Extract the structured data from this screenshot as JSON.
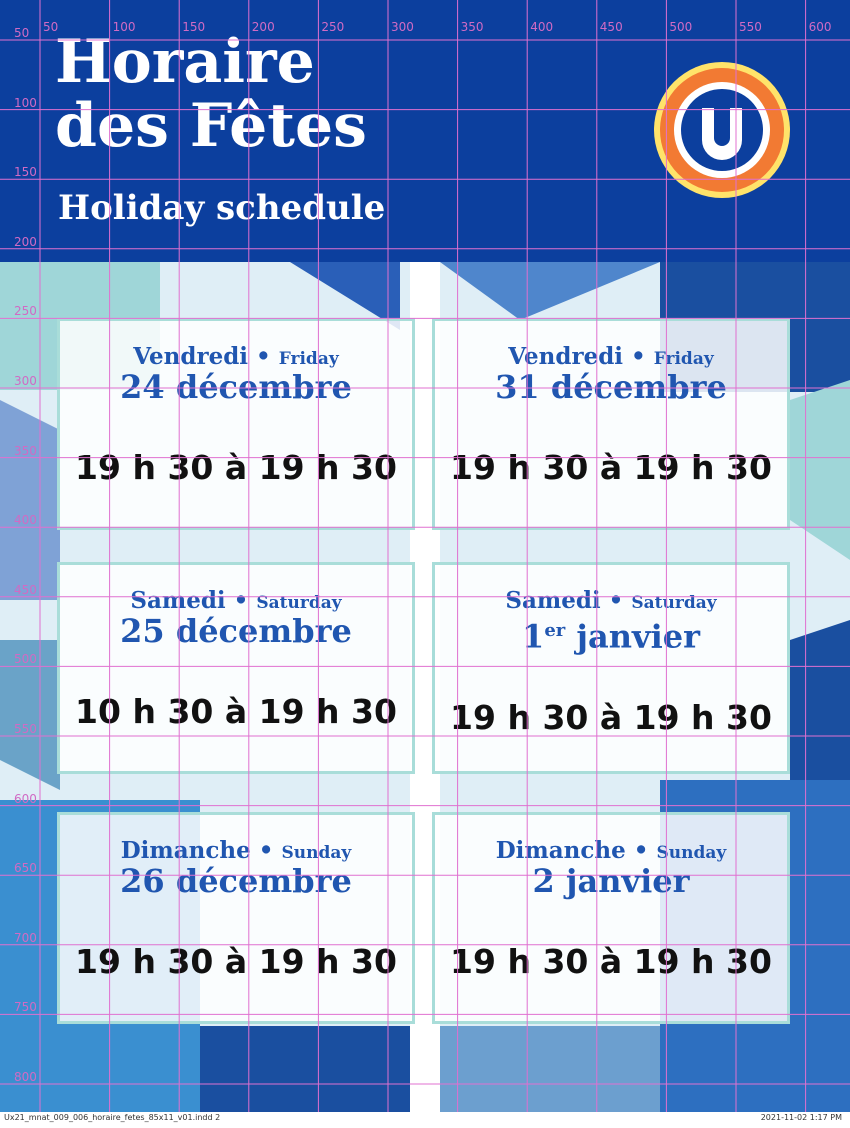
{
  "header": {
    "title_line1": "Horaire",
    "title_line2": "des Fêtes",
    "subtitle": "Holiday schedule"
  },
  "cards": [
    {
      "day_fr": "Vendredi",
      "day_en": "Friday",
      "date": "24 décembre",
      "hours": "19 h 30 à 19 h 30"
    },
    {
      "day_fr": "Vendredi",
      "day_en": "Friday",
      "date": "31 décembre",
      "hours": "19 h 30 à 19 h 30"
    },
    {
      "day_fr": "Samedi",
      "day_en": "Saturday",
      "date": "25 décembre",
      "hours": "10 h 30 à 19 h 30"
    },
    {
      "day_fr": "Samedi",
      "day_en": "Saturday",
      "date": {
        "number": "1",
        "sup": "er",
        "month": "janvier"
      },
      "hours": "19 h 30 à 19 h 30"
    },
    {
      "day_fr": "Dimanche",
      "day_en": "Sunday",
      "date": "26 décembre",
      "hours": "19 h 30 à 19 h 30"
    },
    {
      "day_fr": "Dimanche",
      "day_en": "Sunday",
      "date": "2 janvier",
      "hours": "19 h 30 à 19 h 30"
    }
  ],
  "ruler": {
    "top": [
      50,
      100,
      150,
      200,
      250,
      300,
      350,
      400,
      450,
      500,
      550,
      600
    ],
    "left": [
      50,
      100,
      150,
      200,
      250,
      300,
      350,
      400,
      450,
      500,
      550,
      600,
      650,
      700,
      750,
      800
    ]
  },
  "footer": {
    "file": "Ux21_mnat_009_006_horaire_fetes_85x11_v01.indd  2",
    "timestamp": "2021-11-02   1:17 PM"
  }
}
